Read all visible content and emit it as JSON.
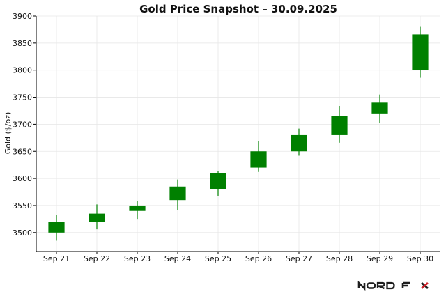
{
  "chart_data": {
    "type": "candlestick",
    "title": "Gold Price Snapshot – 30.09.2025",
    "xlabel": "",
    "ylabel": "Gold ($/oz)",
    "categories": [
      "Sep 21",
      "Sep 22",
      "Sep 23",
      "Sep 24",
      "Sep 25",
      "Sep 26",
      "Sep 27",
      "Sep 28",
      "Sep 29",
      "Sep 30"
    ],
    "ohlc": [
      {
        "open": 3500,
        "high": 3533,
        "low": 3485,
        "close": 3520
      },
      {
        "open": 3520,
        "high": 3552,
        "low": 3506,
        "close": 3535
      },
      {
        "open": 3540,
        "high": 3558,
        "low": 3524,
        "close": 3550
      },
      {
        "open": 3560,
        "high": 3598,
        "low": 3541,
        "close": 3585
      },
      {
        "open": 3580,
        "high": 3614,
        "low": 3568,
        "close": 3610
      },
      {
        "open": 3620,
        "high": 3669,
        "low": 3612,
        "close": 3650
      },
      {
        "open": 3650,
        "high": 3692,
        "low": 3642,
        "close": 3680
      },
      {
        "open": 3680,
        "high": 3734,
        "low": 3666,
        "close": 3715
      },
      {
        "open": 3720,
        "high": 3755,
        "low": 3703,
        "close": 3740
      },
      {
        "open": 3800,
        "high": 3880,
        "low": 3786,
        "close": 3866
      }
    ],
    "ylim": [
      3465,
      3900
    ],
    "yticks": [
      3500,
      3550,
      3600,
      3650,
      3700,
      3750,
      3800,
      3850,
      3900
    ],
    "grid": true,
    "up_color": "#008000"
  },
  "brand": {
    "logo_text": "NORD FX",
    "accent_color": "#d0232a"
  }
}
